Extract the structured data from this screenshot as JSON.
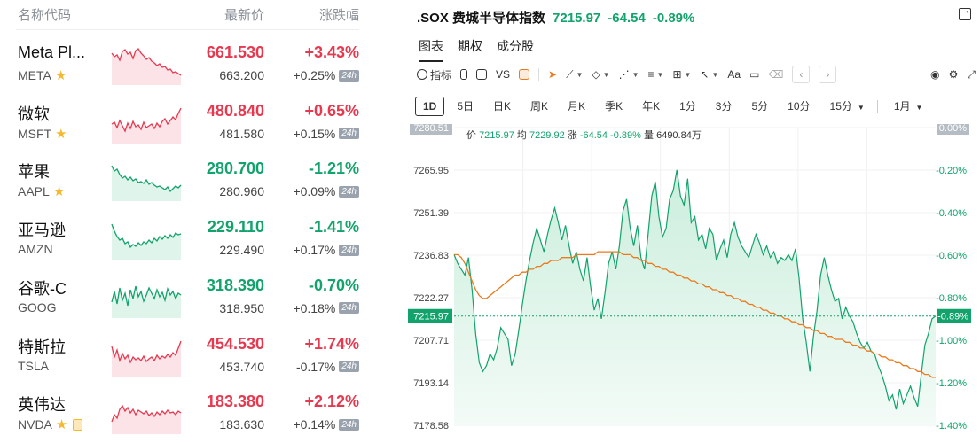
{
  "watchlist": {
    "headers": {
      "name": "名称代码",
      "price": "最新价",
      "change": "涨跌幅"
    },
    "rows": [
      {
        "name": "Meta Pl...",
        "code": "META",
        "star": true,
        "doc": false,
        "price": "661.530",
        "change": "+3.43%",
        "pre_price": "663.200",
        "pre_change": "+0.25%",
        "dir": "up",
        "spark": [
          8,
          12,
          10,
          16,
          6,
          4,
          9,
          7,
          14,
          5,
          3,
          8,
          11,
          15,
          13,
          17,
          19,
          22,
          20,
          24,
          23,
          27,
          26,
          30,
          29,
          31,
          33
        ]
      },
      {
        "name": "微软",
        "code": "MSFT",
        "star": true,
        "doc": false,
        "price": "480.840",
        "change": "+0.65%",
        "pre_price": "481.580",
        "pre_change": "+0.15%",
        "dir": "up",
        "spark": [
          22,
          20,
          26,
          18,
          24,
          30,
          21,
          27,
          19,
          25,
          23,
          28,
          20,
          26,
          24,
          22,
          27,
          21,
          25,
          19,
          16,
          22,
          18,
          14,
          17,
          10,
          4
        ]
      },
      {
        "name": "苹果",
        "code": "AAPL",
        "star": true,
        "doc": false,
        "price": "280.700",
        "change": "-1.21%",
        "pre_price": "280.960",
        "pre_change": "+0.09%",
        "dir": "down",
        "spark": [
          4,
          10,
          8,
          14,
          18,
          16,
          20,
          17,
          21,
          19,
          23,
          22,
          24,
          20,
          25,
          23,
          26,
          28,
          27,
          29,
          31,
          28,
          33,
          30,
          27,
          29,
          26
        ]
      },
      {
        "name": "亚马逊",
        "code": "AMZN",
        "star": false,
        "doc": false,
        "price": "229.110",
        "change": "-1.41%",
        "pre_price": "229.490",
        "pre_change": "+0.17%",
        "dir": "down",
        "spark": [
          4,
          12,
          18,
          22,
          20,
          26,
          24,
          30,
          27,
          29,
          25,
          28,
          24,
          26,
          22,
          25,
          20,
          23,
          18,
          21,
          17,
          20,
          16,
          19,
          14,
          16,
          15
        ]
      },
      {
        "name": "谷歌-C",
        "code": "GOOG",
        "star": false,
        "doc": false,
        "price": "318.390",
        "change": "-0.70%",
        "pre_price": "318.950",
        "pre_change": "+0.18%",
        "dir": "down",
        "spark": [
          26,
          14,
          28,
          10,
          24,
          16,
          30,
          12,
          22,
          8,
          20,
          14,
          25,
          18,
          10,
          16,
          22,
          12,
          20,
          15,
          24,
          11,
          18,
          14,
          22,
          16,
          18
        ]
      },
      {
        "name": "特斯拉",
        "code": "TSLA",
        "star": false,
        "doc": false,
        "price": "454.530",
        "change": "+1.74%",
        "pre_price": "453.740",
        "pre_change": "-0.17%",
        "dir": "up",
        "spark": [
          10,
          22,
          14,
          26,
          18,
          24,
          20,
          28,
          22,
          25,
          23,
          26,
          21,
          27,
          24,
          22,
          26,
          20,
          24,
          21,
          23,
          19,
          22,
          17,
          20,
          12,
          4
        ]
      },
      {
        "name": "英伟达",
        "code": "NVDA",
        "star": true,
        "doc": true,
        "price": "183.380",
        "change": "+2.12%",
        "pre_price": "183.630",
        "pre_change": "+0.14%",
        "dir": "up",
        "spark": [
          30,
          22,
          26,
          16,
          12,
          18,
          14,
          20,
          16,
          22,
          17,
          19,
          21,
          18,
          23,
          20,
          24,
          19,
          22,
          18,
          21,
          17,
          20,
          19,
          22,
          18,
          20
        ]
      }
    ],
    "tag_24h": "24h"
  },
  "chart_panel": {
    "symbol": ".SOX",
    "name": "费城半导体指数",
    "last": "7215.97",
    "change": "-64.54",
    "change_pct": "-0.89%",
    "tabs": [
      "图表",
      "期权",
      "成分股"
    ],
    "toolbar": {
      "indicator": "指标",
      "vs": "VS",
      "text": "Aa"
    },
    "periods": [
      "1D",
      "5日",
      "日K",
      "周K",
      "月K",
      "季K",
      "年K",
      "1分",
      "3分",
      "5分",
      "10分",
      "15分",
      "1月"
    ],
    "info": {
      "price_label": "价",
      "price": "7215.97",
      "avg_label": "均",
      "avg": "7229.92",
      "chg_label": "涨",
      "chg": "-64.54",
      "pct": "-0.89%",
      "vol_label": "量",
      "vol": "6490.84万"
    }
  },
  "chart_data": {
    "type": "area",
    "y_ticks_left": [
      "7280.51",
      "7265.95",
      "7251.39",
      "7236.83",
      "7222.27",
      "7207.71",
      "7193.14",
      "7178.58"
    ],
    "y_ticks_right": [
      "0.00%",
      "-0.20%",
      "-0.40%",
      "-0.60%",
      "-0.80%",
      "-1.00%",
      "-1.20%",
      "-1.40%"
    ],
    "ylim": [
      7178.58,
      7280.51
    ],
    "last_value": 7215.97,
    "last_label": "7215.97",
    "last_pct": "-0.89%",
    "series": [
      {
        "values": [
          7237,
          7234,
          7232,
          7230,
          7236,
          7225,
          7210,
          7200,
          7197,
          7199,
          7203,
          7201,
          7205,
          7212,
          7210,
          7208,
          7199,
          7203,
          7211,
          7220,
          7228,
          7235,
          7241,
          7246,
          7242,
          7238,
          7244,
          7249,
          7253,
          7248,
          7242,
          7247,
          7240,
          7234,
          7238,
          7232,
          7228,
          7236,
          7226,
          7218,
          7222,
          7215,
          7224,
          7234,
          7238,
          7232,
          7240,
          7252,
          7256,
          7246,
          7240,
          7247,
          7236,
          7232,
          7244,
          7257,
          7262,
          7250,
          7243,
          7246,
          7256,
          7259,
          7266,
          7257,
          7254,
          7263,
          7248,
          7250,
          7242,
          7244,
          7239,
          7246,
          7244,
          7235,
          7239,
          7242,
          7236,
          7244,
          7248,
          7243,
          7240,
          7238,
          7236,
          7240,
          7244,
          7241,
          7237,
          7240,
          7236,
          7238,
          7234,
          7236,
          7235,
          7237,
          7235,
          7239,
          7229,
          7215,
          7207,
          7197,
          7209,
          7218,
          7230,
          7236,
          7230,
          7225,
          7221,
          7222,
          7215,
          7219,
          7216,
          7214,
          7210,
          7207,
          7205,
          7207,
          7204,
          7203,
          7199,
          7196,
          7192,
          7187,
          7189,
          7184,
          7191,
          7186,
          7189,
          7192,
          7188,
          7185,
          7196,
          7206,
          7210,
          7215,
          7216
        ]
      },
      {
        "values": [
          7237,
          7237,
          7236,
          7234,
          7231,
          7228,
          7225,
          7223,
          7222,
          7222,
          7223,
          7224,
          7225,
          7226,
          7227,
          7228,
          7229,
          7230,
          7230,
          7231,
          7231,
          7232,
          7232,
          7233,
          7233,
          7234,
          7234,
          7235,
          7235,
          7235,
          7236,
          7236,
          7236,
          7236,
          7237,
          7237,
          7237,
          7237,
          7237,
          7237,
          7238,
          7238,
          7238,
          7238,
          7238,
          7238,
          7238,
          7237,
          7237,
          7237,
          7236,
          7236,
          7235,
          7235,
          7234,
          7234,
          7233,
          7233,
          7232,
          7232,
          7231,
          7231,
          7230,
          7230,
          7229,
          7229,
          7228,
          7228,
          7227,
          7227,
          7226,
          7226,
          7225,
          7225,
          7224,
          7224,
          7223,
          7223,
          7222,
          7222,
          7221,
          7221,
          7220,
          7220,
          7219,
          7219,
          7218,
          7218,
          7217,
          7217,
          7216,
          7216,
          7215,
          7215,
          7214,
          7214,
          7213,
          7213,
          7212,
          7212,
          7211,
          7211,
          7210,
          7210,
          7209,
          7209,
          7208,
          7208,
          7208,
          7207,
          7207,
          7206,
          7206,
          7205,
          7205,
          7204,
          7204,
          7203,
          7203,
          7202,
          7202,
          7201,
          7201,
          7200,
          7200,
          7199,
          7199,
          7198,
          7198,
          7197,
          7197,
          7196,
          7196,
          7195,
          7195
        ]
      }
    ],
    "avg_color": "#ea7a1c",
    "line_color": "#11a36b",
    "fill_color": "#e3f5ec"
  }
}
